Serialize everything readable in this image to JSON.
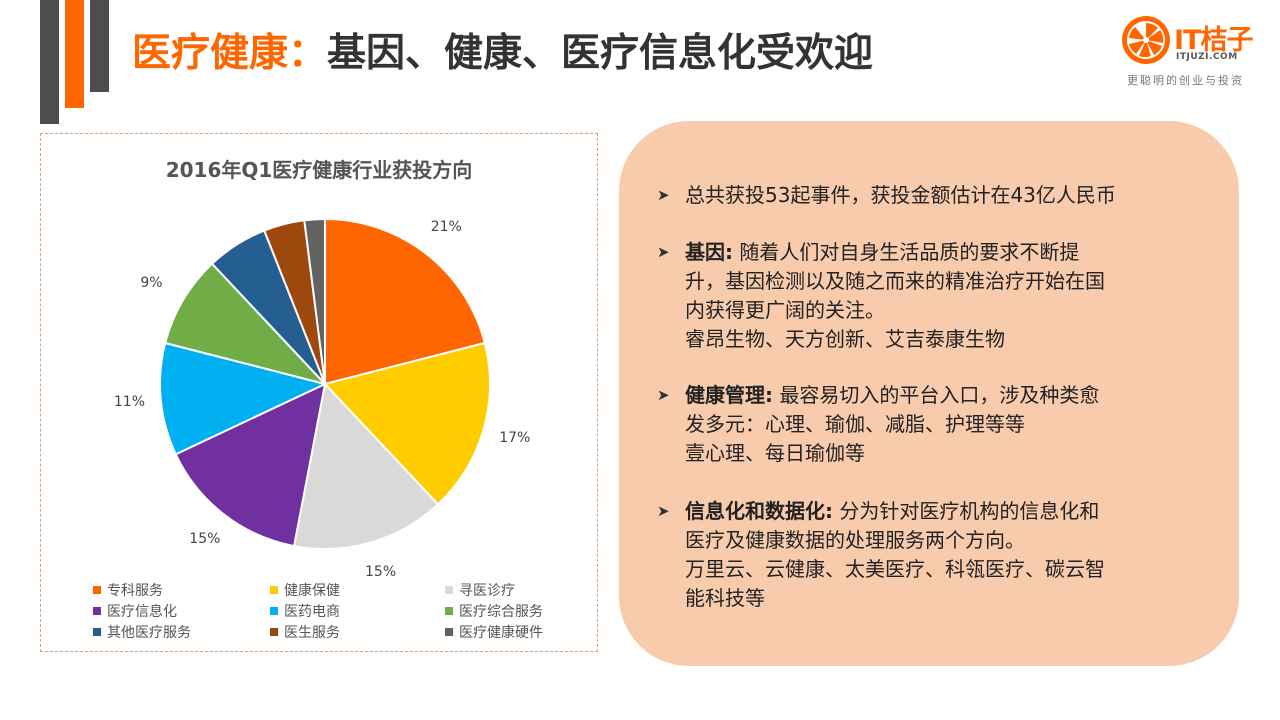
{
  "header": {
    "title_highlight": "医疗健康：",
    "title_rest": "基因、健康、医疗信息化受欢迎"
  },
  "logo": {
    "name": "IT桔子",
    "url": "ITJUZI.COM",
    "tagline": "更聪明的创业与投资"
  },
  "colors": {
    "accent": "#ff6600",
    "dark_bar": "#4d4d4d",
    "panel": "#f8cbad"
  },
  "chart_data": {
    "type": "pie",
    "title": "2016年Q1医疗健康行业获投方向",
    "categories": [
      "专科服务",
      "健康保健",
      "寻医诊疗",
      "医疗信息化",
      "医药电商",
      "医疗综合服务",
      "其他医疗服务",
      "医生服务",
      "医疗健康硬件"
    ],
    "values": [
      21,
      17,
      15,
      15,
      11,
      9,
      6,
      4,
      2
    ],
    "labels": [
      "21%",
      "17%",
      "15%",
      "15%",
      "11%",
      "9%",
      "",
      "",
      ""
    ],
    "colors": [
      "#ff6600",
      "#ffcc00",
      "#d9d9d9",
      "#7030a0",
      "#00b0f0",
      "#70ad47",
      "#255e91",
      "#9e480e",
      "#636363"
    ],
    "legend_position": "bottom"
  },
  "bullets": [
    {
      "keyword": "",
      "lines": [
        "总共获投53起事件，获投金额估计在43亿人民币"
      ]
    },
    {
      "keyword": "基因:",
      "lines": [
        " 随着人们对自身生活品质的要求不断提",
        "升，基因检测以及随之而来的精准治疗开始在国",
        "内获得更广阔的关注。",
        "睿昂生物、天方创新、艾吉泰康生物"
      ]
    },
    {
      "keyword": "健康管理:",
      "lines": [
        " 最容易切入的平台入口，涉及种类愈",
        "发多元：心理、瑜伽、减脂、护理等等",
        "壹心理、每日瑜伽等"
      ]
    },
    {
      "keyword": "信息化和数据化:",
      "lines": [
        " 分为针对医疗机构的信息化和",
        "医疗及健康数据的处理服务两个方向。",
        "万里云、云健康、太美医疗、科瓴医疗、碳云智",
        "能科技等"
      ]
    }
  ]
}
